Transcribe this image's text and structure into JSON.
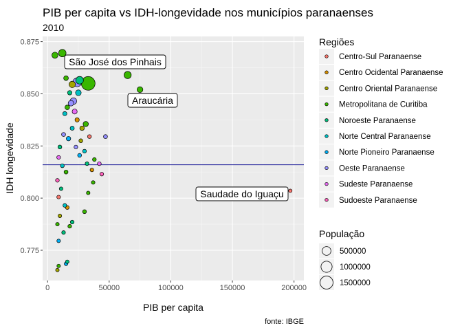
{
  "chart_data": {
    "type": "scatter",
    "title": "PIB per capita vs IDH-longevidade nos municípios paranaenses",
    "subtitle": "2010",
    "xlabel": "PIB per capita",
    "ylabel": "IDH longevidade",
    "caption": "fonte: IBGE",
    "xlim": [
      -4000,
      208000
    ],
    "ylim": [
      0.7605,
      0.8775
    ],
    "x_ticks": [
      0,
      50000,
      100000,
      150000,
      200000
    ],
    "x_tick_labels": [
      "0",
      "50000",
      "100000",
      "150000",
      "200000"
    ],
    "y_ticks": [
      0.775,
      0.8,
      0.825,
      0.85,
      0.875
    ],
    "y_tick_labels": [
      "0.775",
      "0.800",
      "0.825",
      "0.850",
      "0.875"
    ],
    "hline": 0.816,
    "grid": true,
    "legend_position": "right",
    "color_legend": {
      "title": "Regiões",
      "entries": [
        {
          "label": "Centro-Sul Paranaense",
          "color": "#F8766D"
        },
        {
          "label": "Centro Ocidental Paranaense",
          "color": "#D89000"
        },
        {
          "label": "Centro Oriental Paranaense",
          "color": "#A3A500"
        },
        {
          "label": "Metropolitana de Curitiba",
          "color": "#39B600"
        },
        {
          "label": "Noroeste Paranaense",
          "color": "#00BF7D"
        },
        {
          "label": "Norte Central Paranaense",
          "color": "#00BFC4"
        },
        {
          "label": "Norte Pioneiro Paranaense",
          "color": "#00B0F6"
        },
        {
          "label": "Oeste Paranaense",
          "color": "#9590FF"
        },
        {
          "label": "Sudeste Paranaense",
          "color": "#E76BF3"
        },
        {
          "label": "Sudoeste Paranaense",
          "color": "#FF62BC"
        }
      ]
    },
    "size_legend": {
      "title": "População",
      "entries": [
        {
          "label": "500000",
          "value": 500000
        },
        {
          "label": "1000000",
          "value": 1000000
        },
        {
          "label": "1500000",
          "value": 1500000
        }
      ]
    },
    "annotations": [
      {
        "label": "São José dos Pinhais",
        "x": 65000,
        "y": 0.859
      },
      {
        "label": "Araucária",
        "x": 75000,
        "y": 0.852
      },
      {
        "label": "Saudade do Iguaçu",
        "x": 197000,
        "y": 0.8035
      }
    ],
    "points": [
      {
        "x": 33000,
        "y": 0.855,
        "pop": 1750000,
        "r": 3
      },
      {
        "x": 65000,
        "y": 0.859,
        "pop": 264000,
        "r": 3
      },
      {
        "x": 75000,
        "y": 0.852,
        "pop": 120000,
        "r": 3
      },
      {
        "x": 197000,
        "y": 0.8035,
        "pop": 3000,
        "r": 0
      },
      {
        "x": 12000,
        "y": 0.8695,
        "pop": 300000,
        "r": 3
      },
      {
        "x": 6000,
        "y": 0.8685,
        "pop": 150000,
        "r": 3
      },
      {
        "x": 17000,
        "y": 0.8665,
        "pop": 90000,
        "r": 3
      },
      {
        "x": 24000,
        "y": 0.8555,
        "pop": 510000,
        "r": 7
      },
      {
        "x": 26000,
        "y": 0.8565,
        "pop": 330000,
        "r": 4
      },
      {
        "x": 25000,
        "y": 0.8505,
        "pop": 110000,
        "r": 5
      },
      {
        "x": 20000,
        "y": 0.8545,
        "pop": 170000,
        "r": 2
      },
      {
        "x": 15000,
        "y": 0.8575,
        "pop": 45000,
        "r": 3
      },
      {
        "x": 18000,
        "y": 0.8505,
        "pop": 30000,
        "r": 4
      },
      {
        "x": 21000,
        "y": 0.8465,
        "pop": 200000,
        "r": 7
      },
      {
        "x": 19000,
        "y": 0.8455,
        "pop": 100000,
        "r": 7
      },
      {
        "x": 22000,
        "y": 0.8415,
        "pop": 60000,
        "r": 8
      },
      {
        "x": 16000,
        "y": 0.8435,
        "pop": 40000,
        "r": 3
      },
      {
        "x": 14000,
        "y": 0.8405,
        "pop": 20000,
        "r": 5
      },
      {
        "x": 31000,
        "y": 0.8355,
        "pop": 80000,
        "r": 3
      },
      {
        "x": 28000,
        "y": 0.8335,
        "pop": 35000,
        "r": 2
      },
      {
        "x": 24000,
        "y": 0.8375,
        "pop": 25000,
        "r": 1
      },
      {
        "x": 20000,
        "y": 0.8335,
        "pop": 20000,
        "r": 5
      },
      {
        "x": 17000,
        "y": 0.8285,
        "pop": 30000,
        "r": 6
      },
      {
        "x": 13000,
        "y": 0.8305,
        "pop": 15000,
        "r": 7
      },
      {
        "x": 10000,
        "y": 0.8245,
        "pop": 12000,
        "r": 4
      },
      {
        "x": 9000,
        "y": 0.8195,
        "pop": 9000,
        "r": 8
      },
      {
        "x": 12000,
        "y": 0.8155,
        "pop": 10000,
        "r": 5
      },
      {
        "x": 15000,
        "y": 0.8125,
        "pop": 14000,
        "r": 3
      },
      {
        "x": 8000,
        "y": 0.8085,
        "pop": 8000,
        "r": 9
      },
      {
        "x": 11000,
        "y": 0.8045,
        "pop": 6000,
        "r": 4
      },
      {
        "x": 9000,
        "y": 0.8005,
        "pop": 7000,
        "r": 0
      },
      {
        "x": 14000,
        "y": 0.7965,
        "pop": 9000,
        "r": 5
      },
      {
        "x": 10000,
        "y": 0.7915,
        "pop": 6000,
        "r": 2
      },
      {
        "x": 8000,
        "y": 0.7875,
        "pop": 5000,
        "r": 3
      },
      {
        "x": 13000,
        "y": 0.7835,
        "pop": 7000,
        "r": 4
      },
      {
        "x": 9000,
        "y": 0.7795,
        "pop": 5000,
        "r": 6
      },
      {
        "x": 18000,
        "y": 0.7865,
        "pop": 8000,
        "r": 3
      },
      {
        "x": 20000,
        "y": 0.7885,
        "pop": 9000,
        "r": 4
      },
      {
        "x": 16000,
        "y": 0.7955,
        "pop": 10000,
        "r": 1
      },
      {
        "x": 30000,
        "y": 0.7935,
        "pop": 12000,
        "r": 3
      },
      {
        "x": 15000,
        "y": 0.7685,
        "pop": 5000,
        "r": 6
      },
      {
        "x": 9000,
        "y": 0.7675,
        "pop": 4000,
        "r": 3
      },
      {
        "x": 8000,
        "y": 0.7655,
        "pop": 4000,
        "r": 2
      },
      {
        "x": 16000,
        "y": 0.7695,
        "pop": 5000,
        "r": 4
      },
      {
        "x": 47000,
        "y": 0.8295,
        "pop": 15000,
        "r": 7
      },
      {
        "x": 42000,
        "y": 0.8165,
        "pop": 10000,
        "r": 8
      },
      {
        "x": 44000,
        "y": 0.8115,
        "pop": 8000,
        "r": 9
      },
      {
        "x": 38000,
        "y": 0.8185,
        "pop": 9000,
        "r": 3
      },
      {
        "x": 36000,
        "y": 0.8135,
        "pop": 7000,
        "r": 1
      },
      {
        "x": 32000,
        "y": 0.8165,
        "pop": 8000,
        "r": 4
      },
      {
        "x": 37000,
        "y": 0.8075,
        "pop": 6000,
        "r": 3
      },
      {
        "x": 30000,
        "y": 0.8225,
        "pop": 9000,
        "r": 5
      },
      {
        "x": 34000,
        "y": 0.8295,
        "pop": 10000,
        "r": 0
      },
      {
        "x": 33000,
        "y": 0.8025,
        "pop": 5000,
        "r": 3
      },
      {
        "x": 27000,
        "y": 0.8275,
        "pop": 11000,
        "r": 2
      },
      {
        "x": 26000,
        "y": 0.8205,
        "pop": 12000,
        "r": 6
      },
      {
        "x": 23000,
        "y": 0.8245,
        "pop": 9000,
        "r": 7
      }
    ]
  }
}
